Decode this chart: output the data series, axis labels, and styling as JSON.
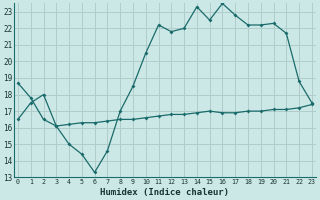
{
  "xlabel": "Humidex (Indice chaleur)",
  "bg_color": "#cce8e6",
  "grid_color": "#b0cccb",
  "line_color": "#1a6b6b",
  "x_ticks": [
    0,
    1,
    2,
    3,
    4,
    5,
    6,
    7,
    8,
    9,
    10,
    11,
    12,
    13,
    14,
    15,
    16,
    17,
    18,
    19,
    20,
    21,
    22,
    23
  ],
  "ylim": [
    13,
    23.5
  ],
  "xlim": [
    -0.3,
    23.3
  ],
  "yticks": [
    13,
    14,
    15,
    16,
    17,
    18,
    19,
    20,
    21,
    22,
    23
  ],
  "line1_x": [
    0,
    1,
    2,
    3,
    4,
    5,
    6,
    7,
    8,
    9,
    10,
    11,
    12,
    13,
    14,
    15,
    16,
    17,
    18,
    19,
    20,
    21,
    22,
    23
  ],
  "line1_y": [
    18.7,
    17.8,
    16.5,
    16.1,
    15.0,
    14.4,
    13.3,
    14.6,
    17.0,
    18.5,
    20.5,
    22.2,
    21.8,
    22.0,
    23.3,
    22.5,
    23.5,
    22.8,
    22.2,
    22.2,
    22.3,
    21.7,
    18.8,
    17.5
  ],
  "line2_x": [
    0,
    1,
    2,
    3,
    4,
    5,
    6,
    7,
    8,
    9,
    10,
    11,
    12,
    13,
    14,
    15,
    16,
    17,
    18,
    19,
    20,
    21,
    22,
    23
  ],
  "line2_y": [
    16.5,
    17.5,
    18.0,
    16.1,
    16.2,
    16.3,
    16.3,
    16.4,
    16.5,
    16.5,
    16.6,
    16.7,
    16.8,
    16.8,
    16.9,
    17.0,
    16.9,
    16.9,
    17.0,
    17.0,
    17.1,
    17.1,
    17.2,
    17.4
  ]
}
